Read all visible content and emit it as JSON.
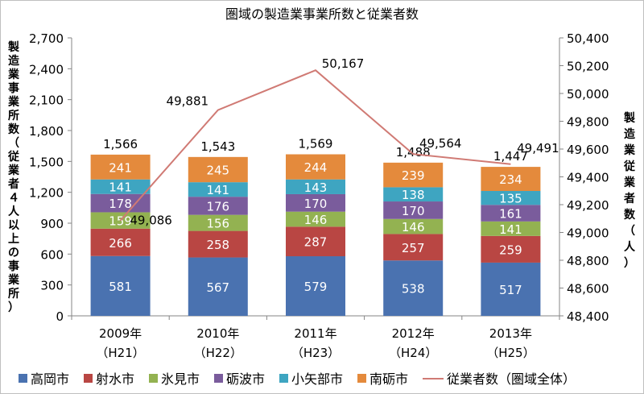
{
  "chart_data": {
    "type": "bar",
    "title": "圏域の製造業事業所数と従業者数",
    "categories": [
      [
        "2009年",
        "（H21）"
      ],
      [
        "2010年",
        "（H22）"
      ],
      [
        "2011年",
        "（H23）"
      ],
      [
        "2012年",
        "（H24）"
      ],
      [
        "2013年",
        "（H25）"
      ]
    ],
    "ylabel": "製造業事業所数（従業者４人以上の事業所）",
    "y2label": "製造業従業者数（人）",
    "ylim": [
      0,
      2700
    ],
    "yticks": [
      "0",
      "300",
      "600",
      "900",
      "1,200",
      "1,500",
      "1,800",
      "2,100",
      "2,400",
      "2,700"
    ],
    "y2lim": [
      48400,
      50400
    ],
    "y2ticks": [
      "48,400",
      "48,600",
      "48,800",
      "49,000",
      "49,200",
      "49,400",
      "49,600",
      "49,800",
      "50,000",
      "50,200",
      "50,400"
    ],
    "stacked": true,
    "series": [
      {
        "name": "高岡市",
        "values": [
          581,
          567,
          579,
          538,
          517
        ],
        "labels": [
          "581",
          "567",
          "579",
          "538",
          "517"
        ],
        "color": "#4a72b0"
      },
      {
        "name": "射水市",
        "values": [
          266,
          258,
          287,
          257,
          259
        ],
        "labels": [
          "266",
          "258",
          "287",
          "257",
          "259"
        ],
        "color": "#b94643"
      },
      {
        "name": "氷見市",
        "values": [
          159,
          156,
          146,
          146,
          141
        ],
        "labels": [
          "159",
          "156",
          "146",
          "146",
          "141"
        ],
        "color": "#93b251"
      },
      {
        "name": "砺波市",
        "values": [
          178,
          176,
          170,
          170,
          161
        ],
        "labels": [
          "178",
          "176",
          "170",
          "170",
          "161"
        ],
        "color": "#7a5c9c"
      },
      {
        "name": "小矢部市",
        "values": [
          141,
          141,
          143,
          138,
          135
        ],
        "labels": [
          "141",
          "141",
          "143",
          "138",
          "135"
        ],
        "color": "#3ea5c1"
      },
      {
        "name": "南砺市",
        "values": [
          241,
          245,
          244,
          239,
          234
        ],
        "labels": [
          "241",
          "245",
          "244",
          "239",
          "234"
        ],
        "color": "#e48a3c"
      }
    ],
    "totals": [
      1566,
      1543,
      1569,
      1488,
      1447
    ],
    "total_labels": [
      "1,566",
      "1,543",
      "1,569",
      "1,488",
      "1,447"
    ],
    "line": {
      "name": "従業者数（圏域全体）",
      "values": [
        49086,
        49881,
        50167,
        49564,
        49491
      ],
      "labels": [
        "49,086",
        "49,881",
        "50,167",
        "49,564",
        "49,491"
      ],
      "color": "#d07a74",
      "axis": "right"
    },
    "legend": "bottom",
    "grid": false
  }
}
